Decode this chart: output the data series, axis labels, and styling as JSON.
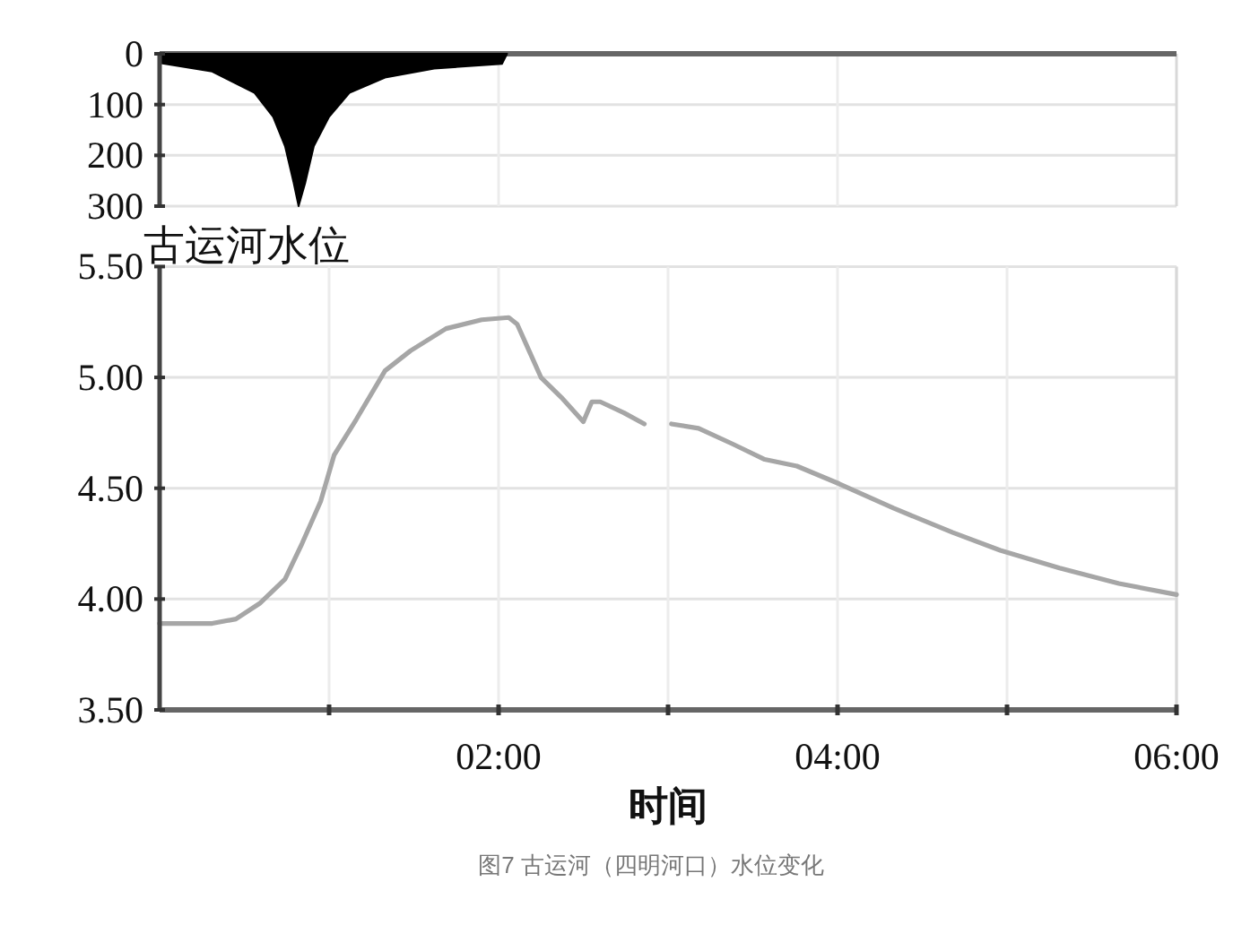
{
  "chart_data": [
    {
      "type": "area",
      "x": [
        0,
        0.31,
        0.56,
        0.67,
        0.74,
        0.79,
        0.82,
        0.86,
        0.91,
        1.0,
        1.12,
        1.33,
        1.62,
        2.02,
        2.05
      ],
      "series": [
        {
          "color": "#000000",
          "values": [
            18,
            35,
            77,
            124,
            182,
            253,
            300,
            253,
            182,
            124,
            77,
            47,
            29,
            20,
            0
          ]
        }
      ],
      "xlim": [
        0,
        6
      ],
      "ylim": [
        300,
        0
      ],
      "yticks": [
        0,
        100,
        200,
        300
      ],
      "xticks": [
        {
          "value": 2,
          "label": null
        },
        {
          "value": 4,
          "label": null
        }
      ],
      "grid": true,
      "tick_labels": "y"
    },
    {
      "type": "line",
      "ylabel": "古运河水位",
      "xlabel": "时间",
      "annotations": [
        "图7 古运河（四明河口）水位变化"
      ],
      "x": [
        0,
        0.31,
        0.45,
        0.59,
        0.74,
        0.84,
        0.95,
        1.03,
        1.16,
        1.33,
        1.48,
        1.69,
        1.9,
        2.06,
        2.11,
        2.18,
        2.25,
        2.37,
        2.5,
        2.55,
        2.6,
        2.74,
        2.86,
        2.93,
        3.02,
        3.18,
        3.38,
        3.57,
        3.76,
        4.01,
        4.33,
        4.68,
        4.96,
        5.31,
        5.66,
        6.0
      ],
      "series": [
        {
          "color": "#a6a6a6",
          "values": [
            3.89,
            3.89,
            3.91,
            3.98,
            4.09,
            4.25,
            4.44,
            4.65,
            4.81,
            5.03,
            5.12,
            5.22,
            5.26,
            5.27,
            5.24,
            5.12,
            5.0,
            4.91,
            4.8,
            4.89,
            4.89,
            4.84,
            4.79,
            null,
            4.79,
            4.77,
            4.7,
            4.63,
            4.6,
            4.52,
            4.41,
            4.3,
            4.22,
            4.14,
            4.07,
            4.02
          ]
        }
      ],
      "xlim": [
        0,
        6
      ],
      "ylim": [
        3.5,
        5.5
      ],
      "xticks": [
        {
          "value": 1,
          "label": null
        },
        {
          "value": 2,
          "label": "02:00"
        },
        {
          "value": 3,
          "label": null
        },
        {
          "value": 4,
          "label": "04:00"
        },
        {
          "value": 5,
          "label": null
        },
        {
          "value": 6,
          "label": "06:00"
        }
      ],
      "yticks": [
        {
          "value": 3.5,
          "label": "3.50"
        },
        {
          "value": 4.0,
          "label": "4.00"
        },
        {
          "value": 4.5,
          "label": "4.50"
        },
        {
          "value": 5.0,
          "label": "5.00"
        },
        {
          "value": 5.5,
          "label": "5.50"
        }
      ],
      "grid": true
    }
  ]
}
